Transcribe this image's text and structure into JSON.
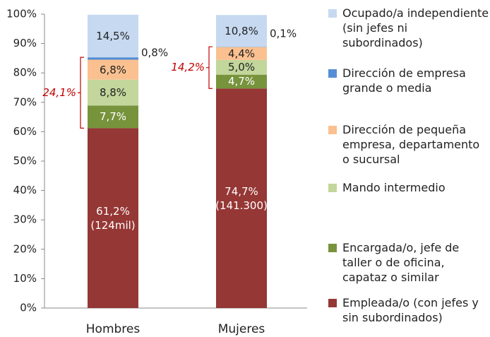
{
  "chart_data": {
    "type": "stacked_bar",
    "categories": [
      "Hombres",
      "Mujeres"
    ],
    "series": [
      {
        "name": "Empleada/o (con jefes y sin subordinados)",
        "color": "#953735",
        "values": [
          61.2,
          74.7
        ],
        "value_labels": [
          "61,2%\n(124mil)",
          "74,7%\n(141.300)"
        ]
      },
      {
        "name": "Encargada/o, jefe de taller o de oficina, capataz o similar",
        "color": "#77933c",
        "values": [
          7.7,
          4.7
        ],
        "value_labels": [
          "7,7%",
          "4,7%"
        ]
      },
      {
        "name": "Mando intermedio",
        "color": "#c3d69b",
        "values": [
          8.8,
          5.0
        ],
        "value_labels": [
          "8,8%",
          "5,0%"
        ]
      },
      {
        "name": "Dirección de pequeña empresa, departamento o sucursal",
        "color": "#fac090",
        "values": [
          6.8,
          4.4
        ],
        "value_labels": [
          "6,8%",
          "4,4%"
        ]
      },
      {
        "name": "Dirección de empresa grande o media",
        "color": "#558ed5",
        "values": [
          0.8,
          0.1
        ],
        "value_labels": [
          "0,8%",
          "0,1%"
        ]
      },
      {
        "name": "Ocupado/a independiente (sin jefes ni subordinados)",
        "color": "#c6d9f1",
        "values": [
          14.5,
          10.8
        ],
        "value_labels": [
          "14,5%",
          "10,8%"
        ]
      }
    ],
    "annotations": [
      "24,1%",
      "14,2%"
    ],
    "ylim": [
      0,
      100
    ],
    "yticks": [
      {
        "value": 0,
        "label": "0%"
      },
      {
        "value": 10,
        "label": "10%"
      },
      {
        "value": 20,
        "label": "20%"
      },
      {
        "value": 30,
        "label": "30%"
      },
      {
        "value": 40,
        "label": "40%"
      },
      {
        "value": 50,
        "label": "50%"
      },
      {
        "value": 60,
        "label": "60%"
      },
      {
        "value": 70,
        "label": "70%"
      },
      {
        "value": 80,
        "label": "80%"
      },
      {
        "value": 90,
        "label": "90%"
      },
      {
        "value": 100,
        "label": "100%"
      }
    ],
    "legend": "right"
  }
}
